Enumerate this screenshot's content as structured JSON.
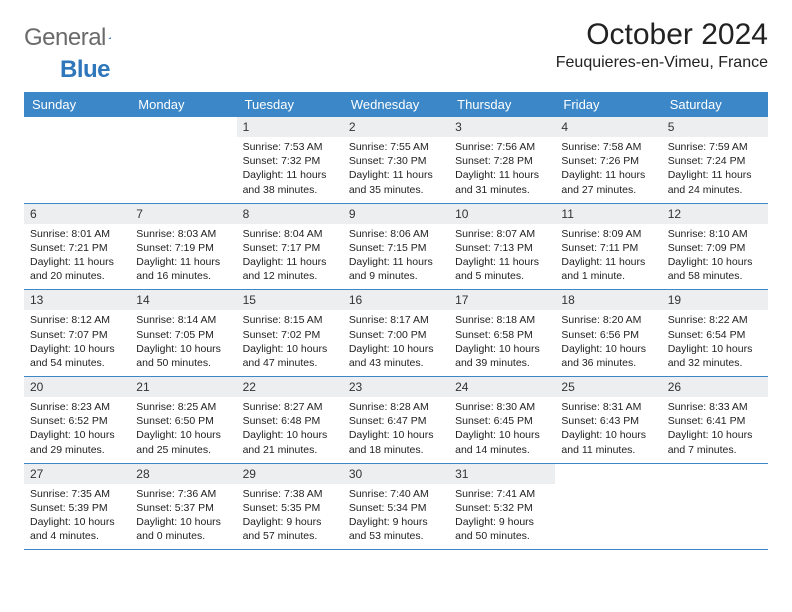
{
  "logo": {
    "text1": "General",
    "text2": "Blue",
    "color_gray": "#6a6a6a",
    "color_blue": "#2f77bb"
  },
  "header": {
    "month_title": "October 2024",
    "location": "Feuquieres-en-Vimeu, France"
  },
  "colors": {
    "header_bg": "#3b87c8",
    "header_text": "#ffffff",
    "daynum_bg": "#eceef0",
    "border": "#3b87c8",
    "text": "#222222"
  },
  "day_names": [
    "Sunday",
    "Monday",
    "Tuesday",
    "Wednesday",
    "Thursday",
    "Friday",
    "Saturday"
  ],
  "weeks": [
    [
      {
        "n": "",
        "lines": []
      },
      {
        "n": "",
        "lines": []
      },
      {
        "n": "1",
        "lines": [
          "Sunrise: 7:53 AM",
          "Sunset: 7:32 PM",
          "Daylight: 11 hours",
          "and 38 minutes."
        ]
      },
      {
        "n": "2",
        "lines": [
          "Sunrise: 7:55 AM",
          "Sunset: 7:30 PM",
          "Daylight: 11 hours",
          "and 35 minutes."
        ]
      },
      {
        "n": "3",
        "lines": [
          "Sunrise: 7:56 AM",
          "Sunset: 7:28 PM",
          "Daylight: 11 hours",
          "and 31 minutes."
        ]
      },
      {
        "n": "4",
        "lines": [
          "Sunrise: 7:58 AM",
          "Sunset: 7:26 PM",
          "Daylight: 11 hours",
          "and 27 minutes."
        ]
      },
      {
        "n": "5",
        "lines": [
          "Sunrise: 7:59 AM",
          "Sunset: 7:24 PM",
          "Daylight: 11 hours",
          "and 24 minutes."
        ]
      }
    ],
    [
      {
        "n": "6",
        "lines": [
          "Sunrise: 8:01 AM",
          "Sunset: 7:21 PM",
          "Daylight: 11 hours",
          "and 20 minutes."
        ]
      },
      {
        "n": "7",
        "lines": [
          "Sunrise: 8:03 AM",
          "Sunset: 7:19 PM",
          "Daylight: 11 hours",
          "and 16 minutes."
        ]
      },
      {
        "n": "8",
        "lines": [
          "Sunrise: 8:04 AM",
          "Sunset: 7:17 PM",
          "Daylight: 11 hours",
          "and 12 minutes."
        ]
      },
      {
        "n": "9",
        "lines": [
          "Sunrise: 8:06 AM",
          "Sunset: 7:15 PM",
          "Daylight: 11 hours",
          "and 9 minutes."
        ]
      },
      {
        "n": "10",
        "lines": [
          "Sunrise: 8:07 AM",
          "Sunset: 7:13 PM",
          "Daylight: 11 hours",
          "and 5 minutes."
        ]
      },
      {
        "n": "11",
        "lines": [
          "Sunrise: 8:09 AM",
          "Sunset: 7:11 PM",
          "Daylight: 11 hours",
          "and 1 minute."
        ]
      },
      {
        "n": "12",
        "lines": [
          "Sunrise: 8:10 AM",
          "Sunset: 7:09 PM",
          "Daylight: 10 hours",
          "and 58 minutes."
        ]
      }
    ],
    [
      {
        "n": "13",
        "lines": [
          "Sunrise: 8:12 AM",
          "Sunset: 7:07 PM",
          "Daylight: 10 hours",
          "and 54 minutes."
        ]
      },
      {
        "n": "14",
        "lines": [
          "Sunrise: 8:14 AM",
          "Sunset: 7:05 PM",
          "Daylight: 10 hours",
          "and 50 minutes."
        ]
      },
      {
        "n": "15",
        "lines": [
          "Sunrise: 8:15 AM",
          "Sunset: 7:02 PM",
          "Daylight: 10 hours",
          "and 47 minutes."
        ]
      },
      {
        "n": "16",
        "lines": [
          "Sunrise: 8:17 AM",
          "Sunset: 7:00 PM",
          "Daylight: 10 hours",
          "and 43 minutes."
        ]
      },
      {
        "n": "17",
        "lines": [
          "Sunrise: 8:18 AM",
          "Sunset: 6:58 PM",
          "Daylight: 10 hours",
          "and 39 minutes."
        ]
      },
      {
        "n": "18",
        "lines": [
          "Sunrise: 8:20 AM",
          "Sunset: 6:56 PM",
          "Daylight: 10 hours",
          "and 36 minutes."
        ]
      },
      {
        "n": "19",
        "lines": [
          "Sunrise: 8:22 AM",
          "Sunset: 6:54 PM",
          "Daylight: 10 hours",
          "and 32 minutes."
        ]
      }
    ],
    [
      {
        "n": "20",
        "lines": [
          "Sunrise: 8:23 AM",
          "Sunset: 6:52 PM",
          "Daylight: 10 hours",
          "and 29 minutes."
        ]
      },
      {
        "n": "21",
        "lines": [
          "Sunrise: 8:25 AM",
          "Sunset: 6:50 PM",
          "Daylight: 10 hours",
          "and 25 minutes."
        ]
      },
      {
        "n": "22",
        "lines": [
          "Sunrise: 8:27 AM",
          "Sunset: 6:48 PM",
          "Daylight: 10 hours",
          "and 21 minutes."
        ]
      },
      {
        "n": "23",
        "lines": [
          "Sunrise: 8:28 AM",
          "Sunset: 6:47 PM",
          "Daylight: 10 hours",
          "and 18 minutes."
        ]
      },
      {
        "n": "24",
        "lines": [
          "Sunrise: 8:30 AM",
          "Sunset: 6:45 PM",
          "Daylight: 10 hours",
          "and 14 minutes."
        ]
      },
      {
        "n": "25",
        "lines": [
          "Sunrise: 8:31 AM",
          "Sunset: 6:43 PM",
          "Daylight: 10 hours",
          "and 11 minutes."
        ]
      },
      {
        "n": "26",
        "lines": [
          "Sunrise: 8:33 AM",
          "Sunset: 6:41 PM",
          "Daylight: 10 hours",
          "and 7 minutes."
        ]
      }
    ],
    [
      {
        "n": "27",
        "lines": [
          "Sunrise: 7:35 AM",
          "Sunset: 5:39 PM",
          "Daylight: 10 hours",
          "and 4 minutes."
        ]
      },
      {
        "n": "28",
        "lines": [
          "Sunrise: 7:36 AM",
          "Sunset: 5:37 PM",
          "Daylight: 10 hours",
          "and 0 minutes."
        ]
      },
      {
        "n": "29",
        "lines": [
          "Sunrise: 7:38 AM",
          "Sunset: 5:35 PM",
          "Daylight: 9 hours",
          "and 57 minutes."
        ]
      },
      {
        "n": "30",
        "lines": [
          "Sunrise: 7:40 AM",
          "Sunset: 5:34 PM",
          "Daylight: 9 hours",
          "and 53 minutes."
        ]
      },
      {
        "n": "31",
        "lines": [
          "Sunrise: 7:41 AM",
          "Sunset: 5:32 PM",
          "Daylight: 9 hours",
          "and 50 minutes."
        ]
      },
      {
        "n": "",
        "lines": []
      },
      {
        "n": "",
        "lines": []
      }
    ]
  ]
}
